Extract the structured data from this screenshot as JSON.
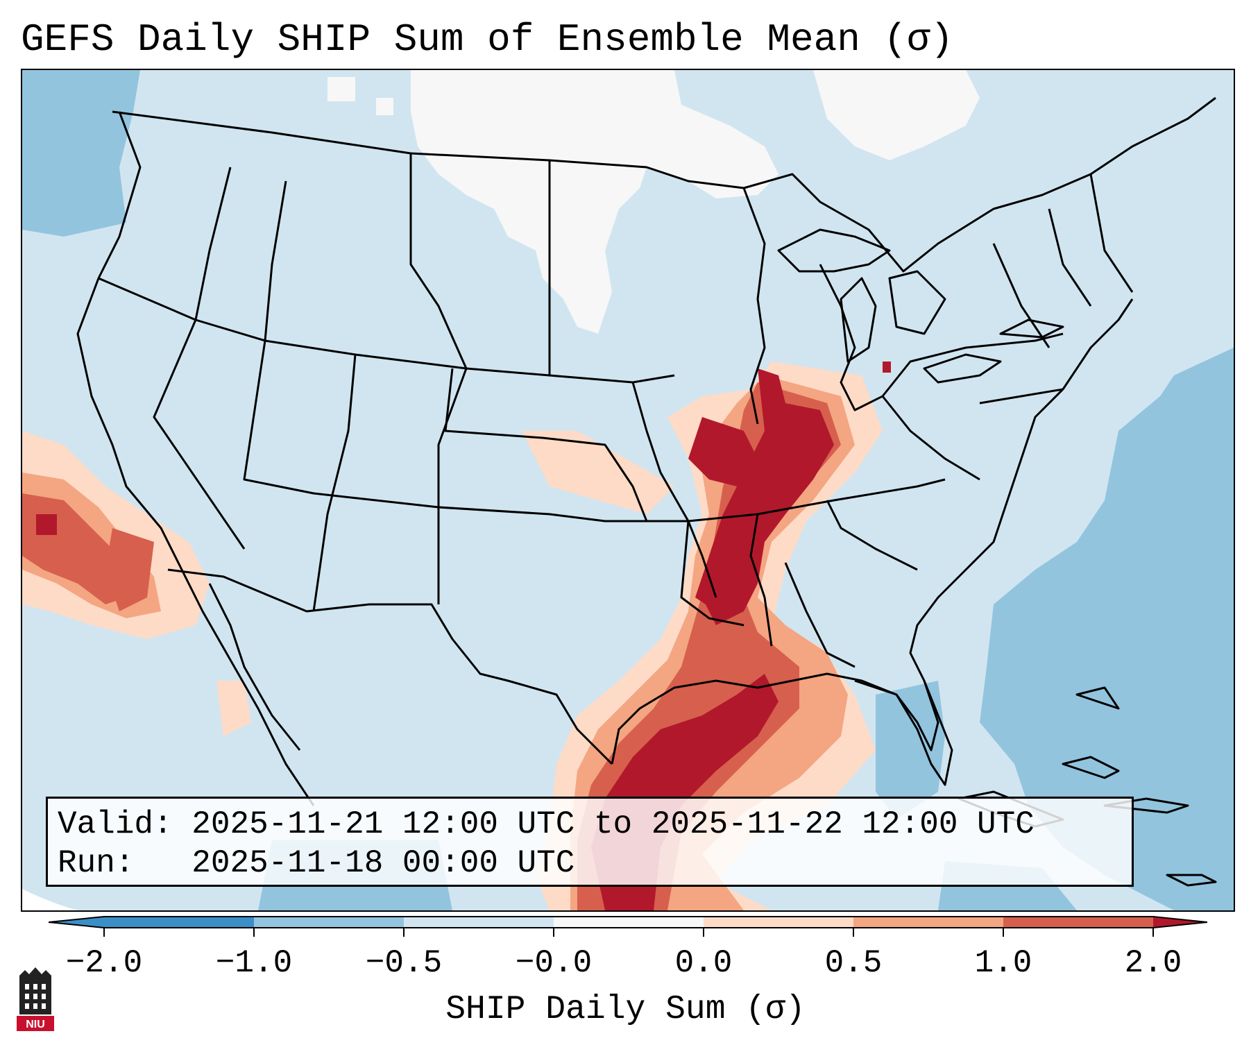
{
  "title": "GEFS Daily SHIP Sum of Ensemble Mean (σ)",
  "info": {
    "valid_label": "Valid:",
    "valid_value": "2025-11-21 12:00 UTC to 2025-11-22 12:00 UTC",
    "run_label": "Run:",
    "run_value": "2025-11-18 00:00 UTC"
  },
  "colorbar": {
    "label": "SHIP Daily Sum (σ)",
    "ticks": [
      "−2.0",
      "−1.0",
      "−0.5",
      "−0.0",
      "0.0",
      "0.5",
      "1.0",
      "2.0"
    ],
    "colors": [
      "#3a8fc7",
      "#92c4de",
      "#d1e5f0",
      "#f7f7f7",
      "#fddbc7",
      "#f4a582",
      "#d6604d",
      "#b2182b"
    ]
  },
  "logo": {
    "text": "NIU"
  }
}
